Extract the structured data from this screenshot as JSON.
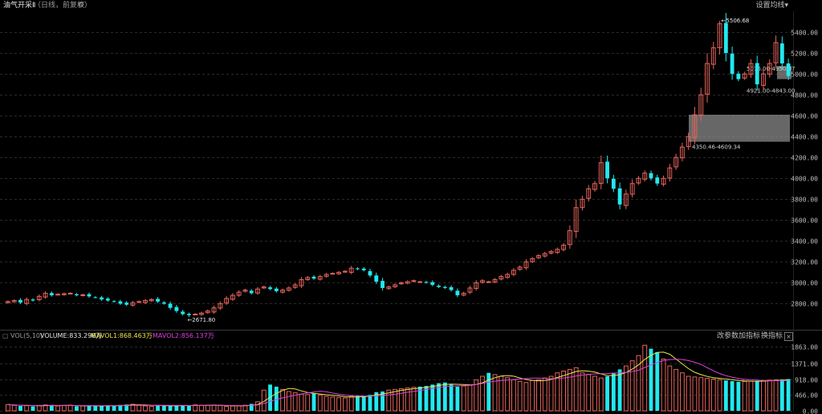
{
  "header": {
    "title": "油气开采Ⅱ",
    "subtitle": "（日线，前复权）",
    "settings_label": "设置均线",
    "settings_caret": "▾"
  },
  "volume_panel": {
    "indicator_label": "VOL(5,10)",
    "volume_text": "VOLUME:833.296万",
    "mavol1_text": "MAVOL1:868.463万",
    "mavol2_text": "MAVOL2:856.137万",
    "btn_params": "改参数",
    "btn_add_indicator": "加指标",
    "btn_switch_indicator": "换指标",
    "btn_close": "×"
  },
  "colors": {
    "up": "#e8645a",
    "down": "#22e8ee",
    "ma1": "#e8e84a",
    "ma2": "#e040e0",
    "grid": "#2a2a2a",
    "axis_text": "#bfbfbf",
    "box": "#8a8a8a"
  },
  "chart_data": [
    {
      "type": "candlestick",
      "y_axis_ticks": [
        "2800.00",
        "3000.00",
        "3200.00",
        "3400.00",
        "3600.00",
        "3800.00",
        "4000.00",
        "4200.00",
        "4400.00",
        "4600.00",
        "4800.00",
        "5000.00",
        "5200.00",
        "5400.00"
      ],
      "ylim": [
        2650,
        5600
      ],
      "annotations": [
        {
          "text": "5506.68",
          "price": 5506.68,
          "marker": "high"
        },
        {
          "text": "2671.80",
          "price": 2671.8,
          "marker": "low"
        },
        {
          "text": "4350.46-4609.34",
          "range": [
            4350.46,
            4609.34
          ]
        },
        {
          "text": "5076.00-4950.07",
          "range": [
            4950.07,
            5076.0
          ]
        },
        {
          "text": "4921.00-4843.00",
          "range": [
            4843.0,
            4921.0
          ]
        }
      ],
      "closes": [
        2820,
        2830,
        2810,
        2840,
        2830,
        2870,
        2900,
        2880,
        2890,
        2895,
        2900,
        2880,
        2885,
        2870,
        2860,
        2840,
        2830,
        2820,
        2800,
        2790,
        2810,
        2820,
        2830,
        2840,
        2820,
        2800,
        2760,
        2730,
        2700,
        2690,
        2700,
        2710,
        2730,
        2760,
        2800,
        2850,
        2880,
        2910,
        2930,
        2900,
        2940,
        2960,
        2940,
        2920,
        2930,
        2950,
        2980,
        3030,
        3050,
        3040,
        3060,
        3080,
        3090,
        3100,
        3110,
        3140,
        3130,
        3120,
        3070,
        3010,
        2950,
        2960,
        2980,
        3000,
        3010,
        3020,
        3010,
        3000,
        2980,
        2960,
        2950,
        2930,
        2880,
        2900,
        2950,
        3000,
        3020,
        3010,
        3030,
        3060,
        3080,
        3120,
        3150,
        3200,
        3230,
        3260,
        3280,
        3300,
        3320,
        3360,
        3500,
        3720,
        3800,
        3900,
        3950,
        4150,
        4000,
        3900,
        3750,
        3850,
        3950,
        4000,
        4050,
        4000,
        3950,
        4000,
        4100,
        4200,
        4300,
        4400,
        4609,
        4800,
        5100,
        5250,
        5480,
        5200,
        5000,
        4950,
        5000,
        5100,
        4900,
        5000,
        5100,
        5300,
        5100,
        4980
      ]
    },
    {
      "type": "bar",
      "title": "VOL",
      "y_axis_ticks": [
        "0.00",
        "466.00",
        "918.00",
        "1371.00",
        "1863.00"
      ],
      "ylim": [
        0,
        2000
      ],
      "values": [
        180,
        160,
        140,
        150,
        130,
        155,
        170,
        165,
        140,
        150,
        160,
        130,
        145,
        150,
        135,
        140,
        160,
        150,
        170,
        180,
        190,
        165,
        140,
        130,
        150,
        160,
        140,
        155,
        145,
        160,
        170,
        155,
        160,
        165,
        150,
        130,
        140,
        145,
        160,
        200,
        260,
        600,
        760,
        700,
        620,
        560,
        520,
        480,
        470,
        500,
        460,
        420,
        400,
        380,
        370,
        420,
        440,
        430,
        460,
        540,
        560,
        600,
        620,
        640,
        660,
        680,
        700,
        720,
        760,
        800,
        820,
        760,
        700,
        720,
        740,
        900,
        1000,
        1100,
        1050,
        1000,
        960,
        900,
        850,
        820,
        880,
        900,
        950,
        1000,
        1100,
        1150,
        1200,
        1250,
        1100,
        1050,
        1000,
        950,
        1000,
        1100,
        1200,
        1300,
        1450,
        1600,
        1900,
        1800,
        1700,
        1500,
        1300,
        1200,
        1100,
        1000,
        980,
        960,
        940,
        920,
        900,
        880,
        860,
        840,
        850,
        860,
        870,
        880,
        890,
        900,
        910,
        920
      ]
    }
  ]
}
